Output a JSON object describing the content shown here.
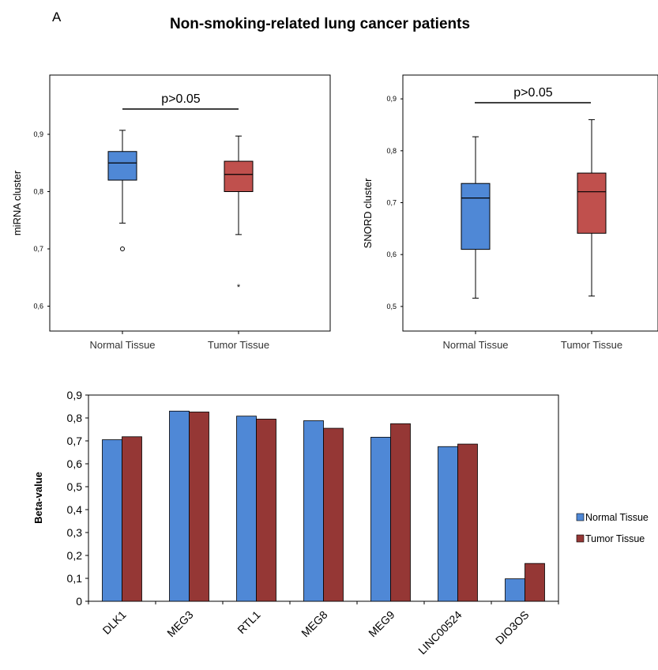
{
  "panel_label": "A",
  "figure_title": "Non-smoking-related lung cancer patients",
  "colors": {
    "normal": "#4f88d6",
    "tumor_box": "#c0504d",
    "tumor_bar": "#953735"
  },
  "chart_data": [
    {
      "type": "box",
      "ylabel": "miRNA cluster",
      "ylim": [
        0.58,
        0.98
      ],
      "yticks": [
        "0,6",
        "0,7",
        "0,8",
        "0,9"
      ],
      "ytick_values": [
        0.6,
        0.7,
        0.8,
        0.9
      ],
      "categories": [
        "Normal Tissue",
        "Tumor Tissue"
      ],
      "boxes": [
        {
          "whisker_low": 0.745,
          "q1": 0.82,
          "median": 0.85,
          "q3": 0.87,
          "whisker_high": 0.907,
          "outliers": [
            {
              "value": 0.7,
              "marker": "o"
            }
          ]
        },
        {
          "whisker_low": 0.725,
          "q1": 0.8,
          "median": 0.83,
          "q3": 0.853,
          "whisker_high": 0.897,
          "outliers": [
            {
              "value": 0.635,
              "marker": "*"
            }
          ]
        }
      ],
      "annotation": "p>0.05"
    },
    {
      "type": "box",
      "ylabel": "SNORD cluster",
      "ylim": [
        0.48,
        0.92
      ],
      "yticks": [
        "0,5",
        "0,6",
        "0,7",
        "0,8",
        "0,9"
      ],
      "ytick_values": [
        0.5,
        0.6,
        0.7,
        0.8,
        0.9
      ],
      "categories": [
        "Normal Tissue",
        "Tumor Tissue"
      ],
      "boxes": [
        {
          "whisker_low": 0.516,
          "q1": 0.61,
          "median": 0.709,
          "q3": 0.737,
          "whisker_high": 0.827,
          "outliers": []
        },
        {
          "whisker_low": 0.52,
          "q1": 0.641,
          "median": 0.721,
          "q3": 0.757,
          "whisker_high": 0.86,
          "outliers": []
        }
      ],
      "annotation": "p>0.05"
    },
    {
      "type": "bar",
      "ylabel": "Beta-value",
      "ylim": [
        0,
        0.9
      ],
      "yticks": [
        "0",
        "0,1",
        "0,2",
        "0,3",
        "0,4",
        "0,5",
        "0,6",
        "0,7",
        "0,8",
        "0,9"
      ],
      "ytick_values": [
        0,
        0.1,
        0.2,
        0.3,
        0.4,
        0.5,
        0.6,
        0.7,
        0.8,
        0.9
      ],
      "categories": [
        "DLK1",
        "MEG3",
        "RTL1",
        "MEG8",
        "MEG9",
        "LINC00524",
        "DIO3OS"
      ],
      "series": [
        {
          "name": "Normal Tissue",
          "values": [
            0.705,
            0.83,
            0.808,
            0.788,
            0.716,
            0.675,
            0.098
          ]
        },
        {
          "name": "Tumor Tissue",
          "values": [
            0.718,
            0.826,
            0.795,
            0.755,
            0.775,
            0.686,
            0.165
          ]
        }
      ],
      "legend": "right"
    }
  ]
}
